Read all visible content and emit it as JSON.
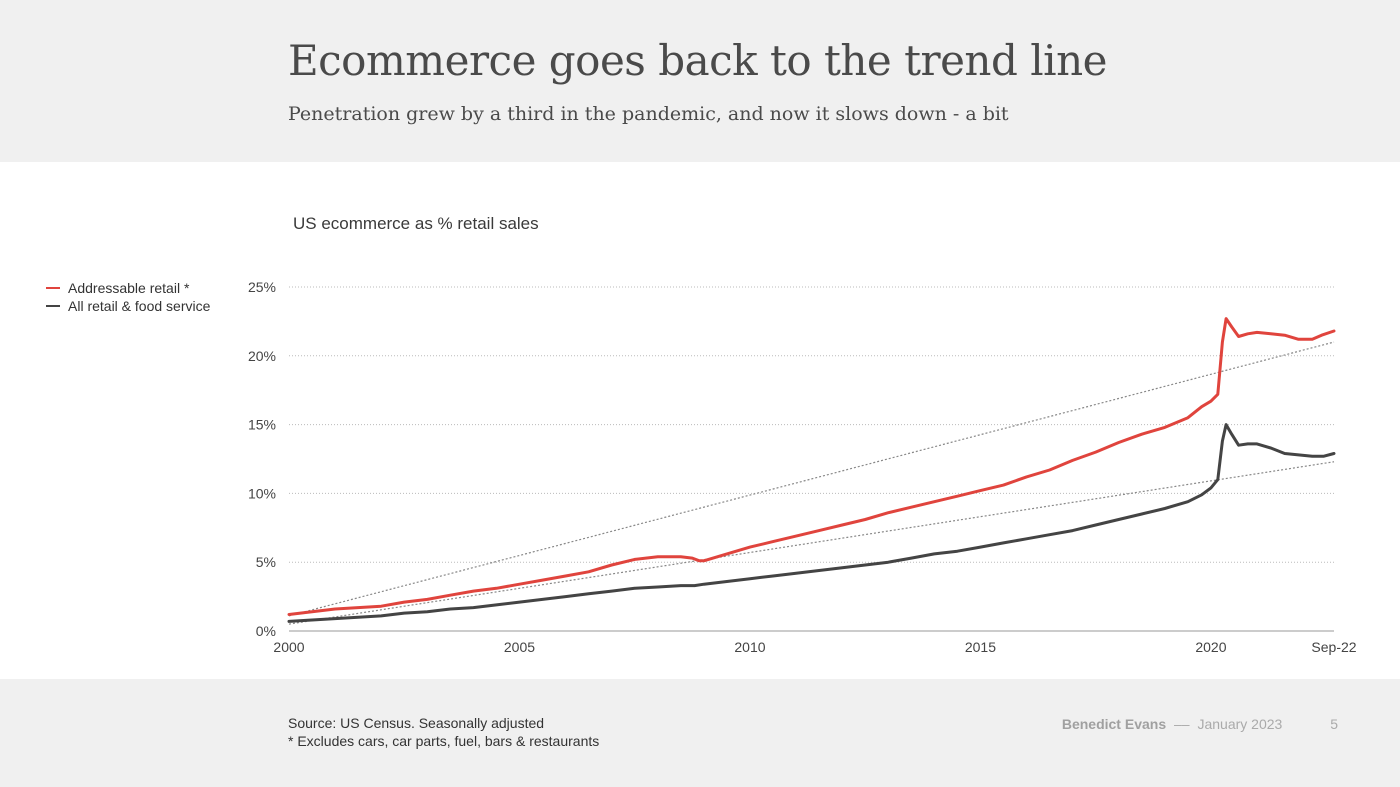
{
  "slide": {
    "title": "Ecommerce goes back to the trend line",
    "subtitle": "Penetration grew by a third in the pandemic, and now it slows down - a bit",
    "source_line1": "Source: US Census. Seasonally adjusted",
    "source_line2": "* Excludes cars, car parts, fuel, bars & restaurants",
    "author": "Benedict Evans",
    "separator": "––",
    "date": "January 2023",
    "page": "5"
  },
  "colors": {
    "addressable": "#e0443d",
    "all_retail": "#444444",
    "trend": "#888888",
    "grid": "#bbbbbb"
  },
  "chart_data": {
    "type": "line",
    "title": "US ecommerce as % retail sales",
    "xlabel": "",
    "ylabel": "",
    "xlim": [
      2000,
      2022.67
    ],
    "ylim": [
      0,
      25
    ],
    "grid": true,
    "legend_position": "left",
    "y_ticks": [
      {
        "value": 0,
        "label": "0%"
      },
      {
        "value": 5,
        "label": "5%"
      },
      {
        "value": 10,
        "label": "10%"
      },
      {
        "value": 15,
        "label": "15%"
      },
      {
        "value": 20,
        "label": "20%"
      },
      {
        "value": 25,
        "label": "25%"
      }
    ],
    "x_ticks": [
      {
        "value": 2000,
        "label": "2000"
      },
      {
        "value": 2005,
        "label": "2005"
      },
      {
        "value": 2010,
        "label": "2010"
      },
      {
        "value": 2015,
        "label": "2015"
      },
      {
        "value": 2020,
        "label": "2020"
      },
      {
        "value": 2022.67,
        "label": "Sep-22"
      }
    ],
    "series": [
      {
        "name": "Addressable retail *",
        "color_key": "addressable",
        "points": [
          [
            2000.0,
            1.2
          ],
          [
            2000.5,
            1.4
          ],
          [
            2001.0,
            1.6
          ],
          [
            2001.5,
            1.7
          ],
          [
            2002.0,
            1.8
          ],
          [
            2002.5,
            2.1
          ],
          [
            2003.0,
            2.3
          ],
          [
            2003.5,
            2.6
          ],
          [
            2004.0,
            2.9
          ],
          [
            2004.5,
            3.1
          ],
          [
            2005.0,
            3.4
          ],
          [
            2005.5,
            3.7
          ],
          [
            2006.0,
            4.0
          ],
          [
            2006.5,
            4.3
          ],
          [
            2007.0,
            4.8
          ],
          [
            2007.5,
            5.2
          ],
          [
            2008.0,
            5.4
          ],
          [
            2008.5,
            5.4
          ],
          [
            2008.75,
            5.3
          ],
          [
            2008.9,
            5.1
          ],
          [
            2009.0,
            5.1
          ],
          [
            2009.5,
            5.6
          ],
          [
            2010.0,
            6.1
          ],
          [
            2010.5,
            6.5
          ],
          [
            2011.0,
            6.9
          ],
          [
            2011.5,
            7.3
          ],
          [
            2012.0,
            7.7
          ],
          [
            2012.5,
            8.1
          ],
          [
            2013.0,
            8.6
          ],
          [
            2013.5,
            9.0
          ],
          [
            2014.0,
            9.4
          ],
          [
            2014.5,
            9.8
          ],
          [
            2015.0,
            10.2
          ],
          [
            2015.5,
            10.6
          ],
          [
            2016.0,
            11.2
          ],
          [
            2016.5,
            11.7
          ],
          [
            2017.0,
            12.4
          ],
          [
            2017.5,
            13.0
          ],
          [
            2018.0,
            13.7
          ],
          [
            2018.5,
            14.3
          ],
          [
            2019.0,
            14.8
          ],
          [
            2019.5,
            15.5
          ],
          [
            2019.8,
            16.3
          ],
          [
            2020.0,
            16.7
          ],
          [
            2020.15,
            17.2
          ],
          [
            2020.25,
            21.0
          ],
          [
            2020.33,
            22.7
          ],
          [
            2020.45,
            22.1
          ],
          [
            2020.6,
            21.4
          ],
          [
            2020.8,
            21.6
          ],
          [
            2021.0,
            21.7
          ],
          [
            2021.3,
            21.6
          ],
          [
            2021.6,
            21.5
          ],
          [
            2021.9,
            21.2
          ],
          [
            2022.2,
            21.2
          ],
          [
            2022.4,
            21.5
          ],
          [
            2022.67,
            21.8
          ]
        ]
      },
      {
        "name": "All retail & food service",
        "color_key": "all_retail",
        "points": [
          [
            2000.0,
            0.7
          ],
          [
            2000.5,
            0.8
          ],
          [
            2001.0,
            0.9
          ],
          [
            2001.5,
            1.0
          ],
          [
            2002.0,
            1.1
          ],
          [
            2002.5,
            1.3
          ],
          [
            2003.0,
            1.4
          ],
          [
            2003.5,
            1.6
          ],
          [
            2004.0,
            1.7
          ],
          [
            2004.5,
            1.9
          ],
          [
            2005.0,
            2.1
          ],
          [
            2005.5,
            2.3
          ],
          [
            2006.0,
            2.5
          ],
          [
            2006.5,
            2.7
          ],
          [
            2007.0,
            2.9
          ],
          [
            2007.5,
            3.1
          ],
          [
            2008.0,
            3.2
          ],
          [
            2008.5,
            3.3
          ],
          [
            2008.8,
            3.3
          ],
          [
            2009.0,
            3.4
          ],
          [
            2009.5,
            3.6
          ],
          [
            2010.0,
            3.8
          ],
          [
            2010.5,
            4.0
          ],
          [
            2011.0,
            4.2
          ],
          [
            2011.5,
            4.4
          ],
          [
            2012.0,
            4.6
          ],
          [
            2012.5,
            4.8
          ],
          [
            2013.0,
            5.0
          ],
          [
            2013.5,
            5.3
          ],
          [
            2014.0,
            5.6
          ],
          [
            2014.5,
            5.8
          ],
          [
            2015.0,
            6.1
          ],
          [
            2015.5,
            6.4
          ],
          [
            2016.0,
            6.7
          ],
          [
            2016.5,
            7.0
          ],
          [
            2017.0,
            7.3
          ],
          [
            2017.5,
            7.7
          ],
          [
            2018.0,
            8.1
          ],
          [
            2018.5,
            8.5
          ],
          [
            2019.0,
            8.9
          ],
          [
            2019.5,
            9.4
          ],
          [
            2019.8,
            9.9
          ],
          [
            2020.0,
            10.4
          ],
          [
            2020.15,
            11.0
          ],
          [
            2020.25,
            13.8
          ],
          [
            2020.33,
            15.0
          ],
          [
            2020.45,
            14.3
          ],
          [
            2020.6,
            13.5
          ],
          [
            2020.8,
            13.6
          ],
          [
            2021.0,
            13.6
          ],
          [
            2021.3,
            13.3
          ],
          [
            2021.6,
            12.9
          ],
          [
            2021.9,
            12.8
          ],
          [
            2022.2,
            12.7
          ],
          [
            2022.45,
            12.7
          ],
          [
            2022.67,
            12.9
          ]
        ]
      }
    ],
    "trend_lines": [
      {
        "for": "Addressable retail *",
        "from": [
          2000.0,
          1.1
        ],
        "to": [
          2022.67,
          21.0
        ]
      },
      {
        "for": "All retail & food service",
        "from": [
          2000.0,
          0.5
        ],
        "to": [
          2022.67,
          12.3
        ]
      }
    ]
  }
}
